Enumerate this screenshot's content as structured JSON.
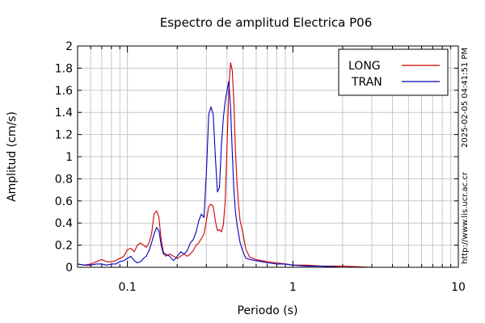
{
  "chart_data": {
    "type": "line",
    "title": "Espectro de amplitud Electrica P06",
    "xlabel": "Periodo (s)",
    "ylabel": "Amplitud (cm/s)",
    "xscale": "log",
    "xlim": [
      0.05,
      10
    ],
    "ylim": [
      0,
      2
    ],
    "yticks": [
      0,
      0.2,
      0.4,
      0.6,
      0.8,
      1,
      1.2,
      1.4,
      1.6,
      1.8,
      2
    ],
    "ytick_labels": [
      "0",
      "0.2",
      "0.4",
      "0.6",
      "0.8",
      "1",
      "1.2",
      "1.4",
      "1.6",
      "1.8",
      "2"
    ],
    "xticks": [
      0.1,
      1,
      10
    ],
    "xtick_labels": [
      "0.1",
      "1",
      "10"
    ],
    "grid": true,
    "legend_position": "top-right",
    "side_text": {
      "timestamp": "2025-02-05 04:41:51 PM",
      "url": "http://www.lis.ucr.ac.cr"
    },
    "series": [
      {
        "name": "LONG",
        "color": "#cc0000",
        "x": [
          0.05,
          0.055,
          0.06,
          0.065,
          0.07,
          0.075,
          0.08,
          0.085,
          0.09,
          0.095,
          0.1,
          0.105,
          0.11,
          0.115,
          0.12,
          0.125,
          0.13,
          0.135,
          0.14,
          0.145,
          0.15,
          0.155,
          0.16,
          0.165,
          0.17,
          0.18,
          0.19,
          0.2,
          0.21,
          0.22,
          0.23,
          0.24,
          0.25,
          0.26,
          0.27,
          0.28,
          0.29,
          0.3,
          0.31,
          0.32,
          0.33,
          0.34,
          0.35,
          0.36,
          0.37,
          0.38,
          0.39,
          0.4,
          0.41,
          0.42,
          0.43,
          0.44,
          0.45,
          0.46,
          0.47,
          0.48,
          0.5,
          0.52,
          0.55,
          0.6,
          0.65,
          0.7,
          0.8,
          0.9,
          1.0,
          1.2,
          1.5,
          2,
          3,
          5,
          7,
          10
        ],
        "values": [
          0.03,
          0.02,
          0.03,
          0.05,
          0.07,
          0.05,
          0.05,
          0.06,
          0.08,
          0.1,
          0.16,
          0.17,
          0.14,
          0.2,
          0.22,
          0.2,
          0.18,
          0.22,
          0.3,
          0.48,
          0.51,
          0.45,
          0.25,
          0.14,
          0.1,
          0.12,
          0.1,
          0.08,
          0.1,
          0.12,
          0.1,
          0.12,
          0.15,
          0.2,
          0.22,
          0.26,
          0.3,
          0.42,
          0.55,
          0.57,
          0.55,
          0.42,
          0.33,
          0.34,
          0.32,
          0.38,
          0.6,
          1.1,
          1.6,
          1.85,
          1.78,
          1.5,
          1.05,
          0.75,
          0.55,
          0.42,
          0.3,
          0.16,
          0.09,
          0.07,
          0.06,
          0.05,
          0.04,
          0.03,
          0.02,
          0.02,
          0.01,
          0.01,
          0.0,
          0.0,
          0.0,
          0.0
        ]
      },
      {
        "name": "TRAN",
        "color": "#0000bb",
        "x": [
          0.05,
          0.055,
          0.06,
          0.065,
          0.07,
          0.075,
          0.08,
          0.085,
          0.09,
          0.095,
          0.1,
          0.105,
          0.11,
          0.115,
          0.12,
          0.125,
          0.13,
          0.135,
          0.14,
          0.145,
          0.15,
          0.155,
          0.16,
          0.165,
          0.17,
          0.18,
          0.19,
          0.2,
          0.21,
          0.22,
          0.23,
          0.24,
          0.25,
          0.26,
          0.27,
          0.28,
          0.29,
          0.3,
          0.31,
          0.32,
          0.33,
          0.34,
          0.35,
          0.36,
          0.37,
          0.38,
          0.39,
          0.4,
          0.41,
          0.42,
          0.43,
          0.44,
          0.45,
          0.46,
          0.47,
          0.48,
          0.5,
          0.52,
          0.55,
          0.6,
          0.65,
          0.7,
          0.8,
          0.9,
          1.0,
          1.2,
          1.5,
          2,
          3,
          5,
          7,
          10
        ],
        "values": [
          0.03,
          0.02,
          0.02,
          0.03,
          0.03,
          0.02,
          0.03,
          0.03,
          0.05,
          0.06,
          0.08,
          0.1,
          0.06,
          0.04,
          0.05,
          0.08,
          0.1,
          0.15,
          0.22,
          0.3,
          0.36,
          0.33,
          0.2,
          0.12,
          0.12,
          0.1,
          0.06,
          0.1,
          0.14,
          0.12,
          0.15,
          0.22,
          0.25,
          0.32,
          0.42,
          0.48,
          0.45,
          0.85,
          1.38,
          1.45,
          1.38,
          1.0,
          0.68,
          0.72,
          1.1,
          1.35,
          1.5,
          1.6,
          1.68,
          1.45,
          1.05,
          0.7,
          0.5,
          0.38,
          0.3,
          0.22,
          0.14,
          0.08,
          0.07,
          0.06,
          0.05,
          0.04,
          0.03,
          0.03,
          0.02,
          0.01,
          0.01,
          0.0,
          0.0,
          0.0,
          0.0,
          0.0
        ]
      }
    ]
  }
}
